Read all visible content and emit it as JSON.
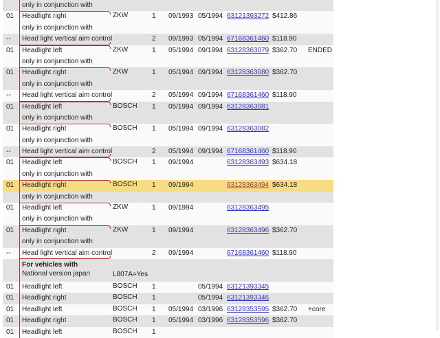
{
  "rows": [
    {
      "kind": "conj",
      "bg": "grey",
      "desc": "only in conjunction with"
    },
    {
      "kind": "item",
      "bg": "white",
      "num": "01",
      "desc": "Headlight right",
      "man": "ZKW",
      "qty": "1",
      "from": "09/1993",
      "to": "05/1994",
      "part": "63121393272",
      "price": "$412.86",
      "note": ""
    },
    {
      "kind": "conj",
      "bg": "white",
      "desc": "only in conjunction with"
    },
    {
      "kind": "aim",
      "bg": "grey",
      "num": "--",
      "desc": "Head light vertical aim control",
      "man": "",
      "qty": "2",
      "from": "09/1993",
      "to": "05/1994",
      "part": "67168361460",
      "price": "$118.90",
      "note": ""
    },
    {
      "kind": "item",
      "bg": "white",
      "num": "01",
      "desc": "Headlight left",
      "man": "ZKW",
      "qty": "1",
      "from": "05/1994",
      "to": "09/1994",
      "part": "63128363079",
      "price": "$362.70",
      "note": "ENDED"
    },
    {
      "kind": "conj",
      "bg": "white",
      "desc": "only in conjunction with"
    },
    {
      "kind": "item",
      "bg": "grey",
      "num": "01",
      "desc": "Headlight right",
      "man": "ZKW",
      "qty": "1",
      "from": "05/1994",
      "to": "09/1994",
      "part": "63128363080",
      "price": "$362.70",
      "note": ""
    },
    {
      "kind": "conj",
      "bg": "grey",
      "desc": "only in conjunction with"
    },
    {
      "kind": "aim",
      "bg": "white",
      "num": "--",
      "desc": "Head light vertical aim control",
      "man": "",
      "qty": "2",
      "from": "05/1994",
      "to": "09/1994",
      "part": "67168361460",
      "price": "$118.90",
      "note": ""
    },
    {
      "kind": "item",
      "bg": "grey",
      "num": "01",
      "desc": "Headlight left",
      "man": "BOSCH",
      "qty": "1",
      "from": "05/1994",
      "to": "09/1994",
      "part": "63128363081",
      "price": "",
      "note": ""
    },
    {
      "kind": "conj",
      "bg": "grey",
      "desc": "only in conjunction with"
    },
    {
      "kind": "item",
      "bg": "white",
      "num": "01",
      "desc": "Headlight right",
      "man": "BOSCH",
      "qty": "1",
      "from": "05/1994",
      "to": "09/1994",
      "part": "63128363082",
      "price": "",
      "note": ""
    },
    {
      "kind": "conj",
      "bg": "white",
      "desc": "only in conjunction with"
    },
    {
      "kind": "aim",
      "bg": "grey",
      "num": "--",
      "desc": "Head light vertical aim control",
      "man": "",
      "qty": "2",
      "from": "05/1994",
      "to": "09/1994",
      "part": "67168361460",
      "price": "$118.90",
      "note": ""
    },
    {
      "kind": "item",
      "bg": "white",
      "num": "01",
      "desc": "Headlight left",
      "man": "BOSCH",
      "qty": "1",
      "from": "09/1994",
      "to": "",
      "part": "63128363493",
      "price": "$634.18",
      "note": ""
    },
    {
      "kind": "conj",
      "bg": "white",
      "desc": "only in conjunction with"
    },
    {
      "kind": "item",
      "bg": "highlight",
      "num": "01",
      "desc": "Headlight right",
      "man": "BOSCH",
      "qty": "1",
      "from": "09/1994",
      "to": "",
      "part": "63128363494",
      "price": "$634.18",
      "note": ""
    },
    {
      "kind": "conj",
      "bg": "grey",
      "desc": "only in conjunction with"
    },
    {
      "kind": "item",
      "bg": "white",
      "num": "01",
      "desc": "Headlight left",
      "man": "ZKW",
      "qty": "1",
      "from": "09/1994",
      "to": "",
      "part": "63128363495",
      "price": "",
      "note": ""
    },
    {
      "kind": "conj",
      "bg": "white",
      "desc": "only in conjunction with"
    },
    {
      "kind": "item",
      "bg": "grey",
      "num": "01",
      "desc": "Headlight right",
      "man": "ZKW",
      "qty": "1",
      "from": "09/1994",
      "to": "",
      "part": "63128363496",
      "price": "$362.70",
      "note": ""
    },
    {
      "kind": "conj",
      "bg": "grey",
      "desc": "only in conjunction with"
    },
    {
      "kind": "aim",
      "bg": "white",
      "num": "--",
      "desc": "Head light vertical aim control",
      "man": "",
      "qty": "2",
      "from": "09/1994",
      "to": "",
      "part": "67168361460",
      "price": "$118.90",
      "note": ""
    },
    {
      "kind": "header",
      "bg": "grey",
      "title": "For vehicles with",
      "desc": "National version japan",
      "man": "L807A=Yes"
    },
    {
      "kind": "plain",
      "bg": "white",
      "num": "01",
      "desc": "Headlight left",
      "man": "BOSCH",
      "qty": "1",
      "from": "",
      "to": "05/1994",
      "part": "63121393345",
      "price": "",
      "note": ""
    },
    {
      "kind": "plain",
      "bg": "grey",
      "num": "01",
      "desc": "Headlight right",
      "man": "BOSCH",
      "qty": "1",
      "from": "",
      "to": "05/1994",
      "part": "63121393346",
      "price": "",
      "note": ""
    },
    {
      "kind": "plain",
      "bg": "white",
      "num": "01",
      "desc": "Headlight left",
      "man": "BOSCH",
      "qty": "1",
      "from": "05/1994",
      "to": "03/1996",
      "part": "63128353595",
      "price": "$362.70",
      "note": "+core"
    },
    {
      "kind": "plain",
      "bg": "grey",
      "num": "01",
      "desc": "Headlight right",
      "man": "BOSCH",
      "qty": "1",
      "from": "05/1994",
      "to": "03/1996",
      "part": "63128353596",
      "price": "$362.70",
      "note": ""
    },
    {
      "kind": "plain",
      "bg": "white",
      "num": "01",
      "desc": "Headlight left",
      "man": "BOSCH",
      "qty": "1",
      "from": "",
      "to": "",
      "part": "",
      "price": "",
      "note": ""
    }
  ]
}
